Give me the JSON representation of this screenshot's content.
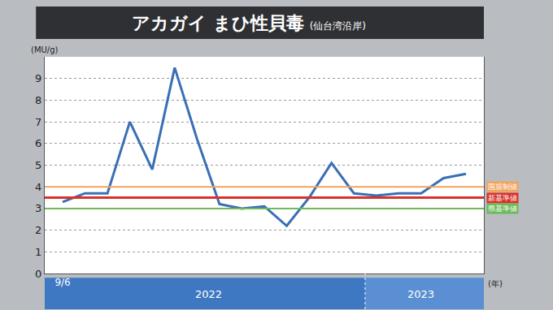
{
  "chart_data": {
    "type": "line",
    "title": "アカガイ まひ性貝毒",
    "subtitle": "(仙台湾沿岸)",
    "y_label": "(MU/g)",
    "x_label": "(年)",
    "categories": [
      "9/6",
      null,
      null,
      null,
      null,
      null,
      null,
      null,
      null,
      null,
      null,
      null,
      null,
      null,
      null,
      null,
      null,
      null,
      null
    ],
    "values": [
      3.3,
      3.7,
      3.7,
      7.0,
      4.8,
      9.5,
      6.2,
      3.2,
      3.0,
      3.1,
      2.2,
      3.5,
      5.1,
      3.7,
      3.6,
      3.7,
      3.7,
      4.4,
      4.6
    ],
    "color": "#3a6fb5",
    "line_style": "solid",
    "ylim": [
      0,
      10
    ],
    "yticks": [
      0,
      1,
      2,
      3,
      4,
      5,
      6,
      7,
      8,
      9
    ],
    "grid": true,
    "reference_lines": [
      {
        "label": "国規制値",
        "value": 4,
        "color": "#f2a45c"
      },
      {
        "label": "新基準値",
        "value": 3.5,
        "color": "#d8322a"
      },
      {
        "label": "県基準値",
        "value": 3,
        "color": "#6dba5a"
      }
    ],
    "periods": [
      {
        "label": "2022",
        "start": 0,
        "end": 13
      },
      {
        "label": "2023",
        "start": 14,
        "end": 18
      }
    ]
  }
}
